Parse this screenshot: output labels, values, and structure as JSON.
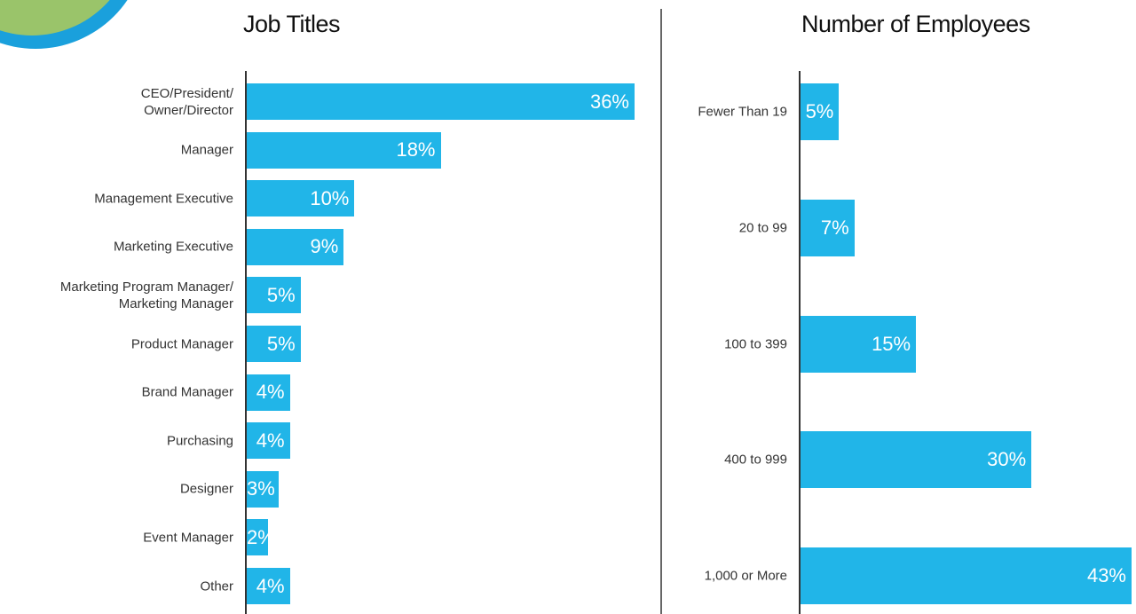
{
  "chart_data": [
    {
      "type": "bar",
      "orientation": "horizontal",
      "title": "Job Titles",
      "color": "#21b5e8",
      "categories": [
        "CEO/President/\nOwner/Director",
        "Manager",
        "Management Executive",
        "Marketing Executive",
        "Marketing Program Manager/\nMarketing Manager",
        "Product Manager",
        "Brand Manager",
        "Purchasing",
        "Designer",
        "Event Manager",
        "Other"
      ],
      "values": [
        36,
        18,
        10,
        9,
        5,
        5,
        4,
        4,
        3,
        2,
        4
      ],
      "value_labels": [
        "36%",
        "18%",
        "10%",
        "9%",
        "5%",
        "5%",
        "4%",
        "4%",
        "3%",
        "2%",
        "4%"
      ]
    },
    {
      "type": "bar",
      "orientation": "horizontal",
      "title": "Number of Employees",
      "color": "#21b5e8",
      "categories": [
        "Fewer Than 19",
        "20 to 99",
        "100 to 399",
        "400 to 999",
        "1,000 or More"
      ],
      "values": [
        5,
        7,
        15,
        30,
        43
      ],
      "value_labels": [
        "5%",
        "7%",
        "15%",
        "30%",
        "43%"
      ]
    }
  ]
}
